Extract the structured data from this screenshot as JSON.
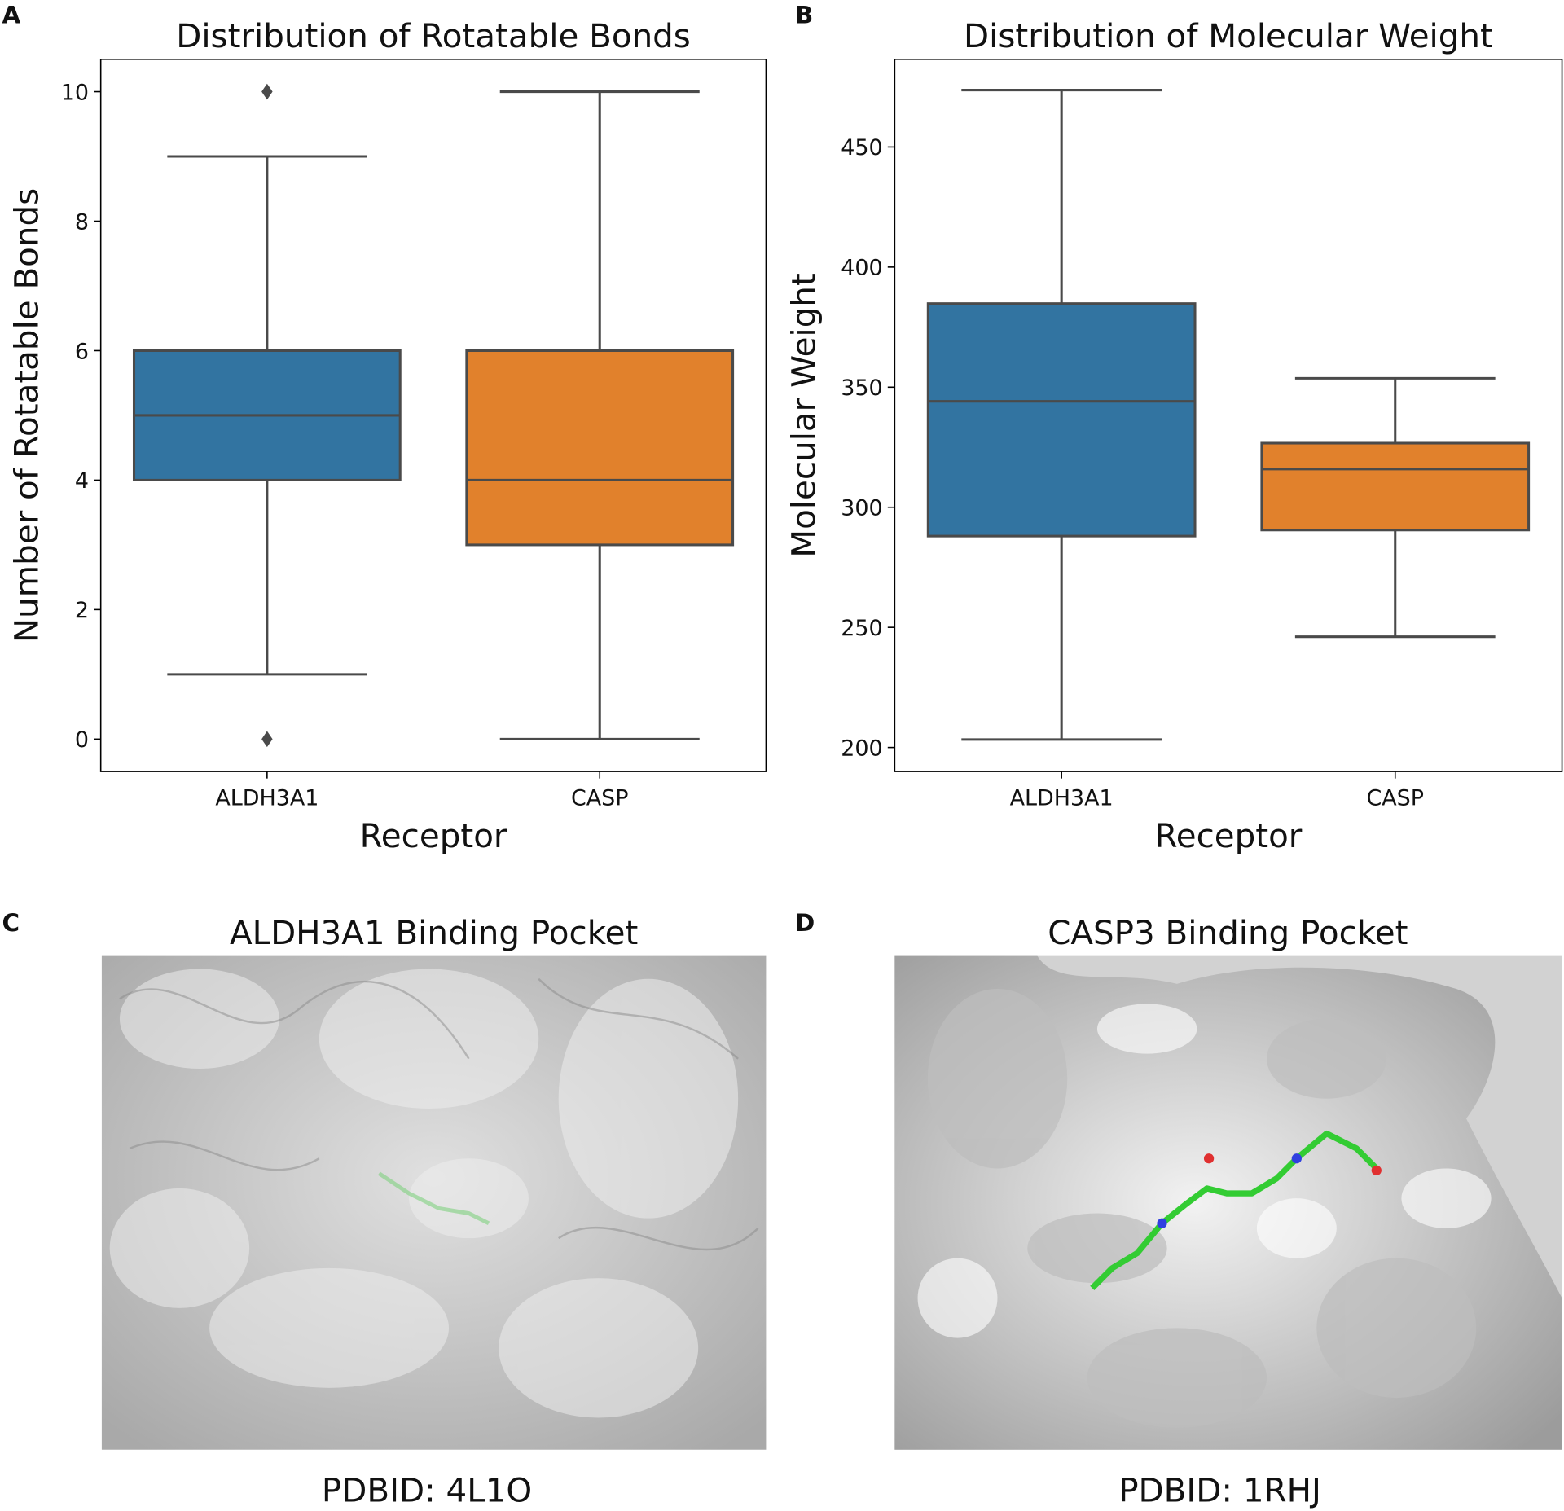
{
  "chart_data": [
    {
      "type": "box",
      "panel_label": "A",
      "title": "Distribution of Rotatable Bonds",
      "x_label": "Receptor",
      "y_label": "Number of Rotatable Bonds",
      "categories": [
        "ALDH3A1",
        "CASP"
      ],
      "colors": [
        "#3274a1",
        "#e1812c"
      ],
      "whislo": [
        1,
        0
      ],
      "q1": [
        4,
        3
      ],
      "med": [
        5,
        4
      ],
      "q3": [
        6,
        6
      ],
      "whishi": [
        9,
        10
      ],
      "outliers": [
        [
          10,
          0
        ],
        []
      ],
      "ylim": [
        -0.5,
        10.5
      ],
      "yticks": [
        0,
        2,
        4,
        6,
        8,
        10
      ]
    },
    {
      "type": "box",
      "panel_label": "B",
      "title": "Distribution of Molecular Weight",
      "x_label": "Receptor",
      "y_label": "Molecular Weight",
      "categories": [
        "ALDH3A1",
        "CASP"
      ],
      "colors": [
        "#3274a1",
        "#e1812c"
      ],
      "whislo": [
        203.3,
        246.1
      ],
      "q1": [
        288,
        290.5
      ],
      "med": [
        344.1,
        315.9
      ],
      "q3": [
        384.8,
        326.7
      ],
      "whishi": [
        473.7,
        353.7
      ],
      "outliers": [
        [],
        []
      ],
      "ylim": [
        190,
        486.5
      ],
      "yticks": [
        200,
        250,
        300,
        350,
        400,
        450
      ]
    }
  ],
  "images": [
    {
      "panel_label": "C",
      "title": "ALDH3A1 Binding Pocket",
      "caption": "PDBID: 4L1O"
    },
    {
      "panel_label": "D",
      "title": "CASP3 Binding Pocket",
      "caption": "PDBID: 1RHJ"
    }
  ]
}
